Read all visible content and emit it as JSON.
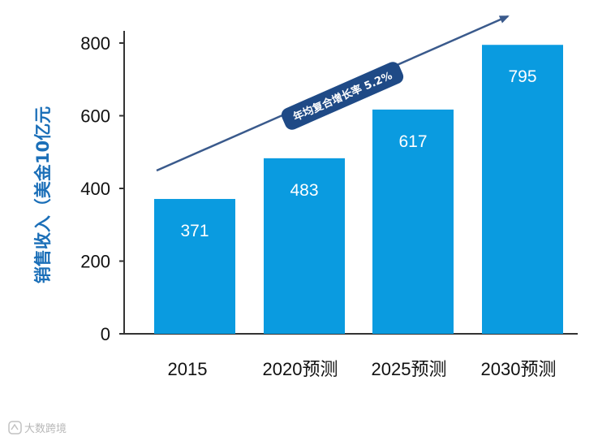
{
  "chart_data": {
    "type": "bar",
    "categories": [
      "2015",
      "2020预测",
      "2025预测",
      "2030预测"
    ],
    "values": [
      371,
      483,
      617,
      795
    ],
    "data_labels": [
      "371",
      "483",
      "617",
      "795"
    ],
    "ylabel": "销售收入（美金10亿元",
    "ylim": [
      0,
      800
    ],
    "yticks": [
      0,
      200,
      400,
      600,
      800
    ],
    "ytick_labels": [
      "0",
      "200",
      "400",
      "600",
      "800"
    ],
    "grid": false,
    "bar_color": "#0a9be0",
    "annotation": {
      "text": "年均复合增长率 5.2%",
      "arrow_color": "#3a5a8c",
      "pill_color": "#1f4a86"
    }
  },
  "watermark": {
    "text": "大数跨境",
    "color": "#b8b8b8"
  }
}
